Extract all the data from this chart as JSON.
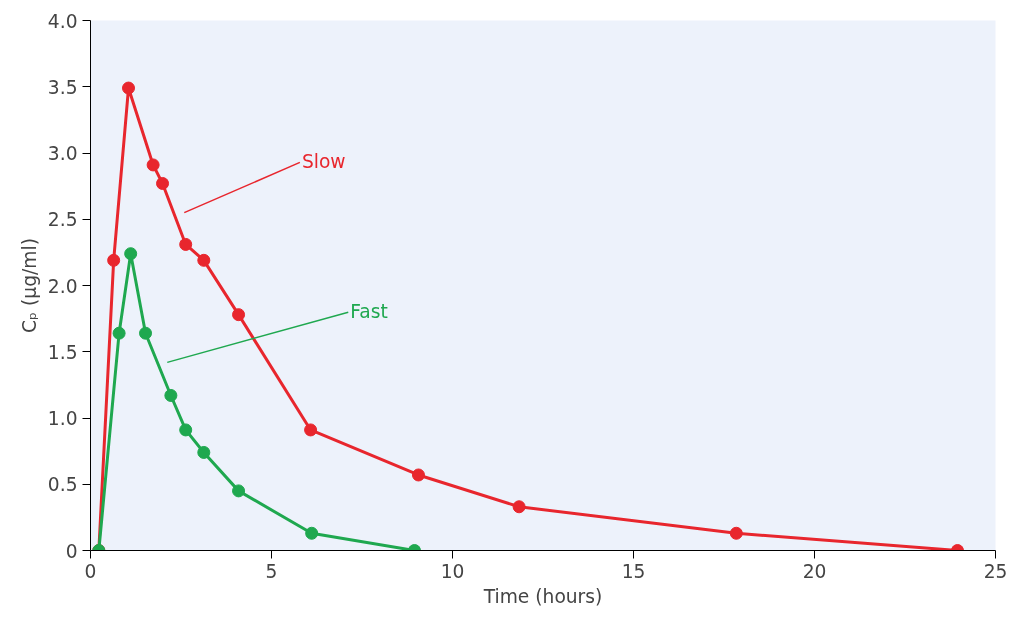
{
  "chart_data": {
    "type": "line",
    "xlabel": "Time (hours)",
    "ylabel": "Cₚ (μg/ml)",
    "xlim": [
      0,
      25
    ],
    "ylim": [
      0,
      4.0
    ],
    "xticks": [
      0,
      5,
      10,
      15,
      20,
      25
    ],
    "yticks": [
      0,
      {
        "value": 0.5,
        "label": "0.5"
      },
      {
        "value": 1,
        "label": "1.0"
      },
      {
        "value": 1.5,
        "label": "1.5"
      },
      {
        "value": 2,
        "label": "2.0"
      },
      {
        "value": 2.5,
        "label": "2.5"
      },
      {
        "value": 3,
        "label": "3.0"
      },
      {
        "value": 3.5,
        "label": "3.5"
      },
      {
        "value": 4,
        "label": "4.0"
      }
    ],
    "grid": false,
    "marker": "circle",
    "line_style": "solid",
    "series": [
      {
        "name": "Slow",
        "color": "#e8262d",
        "x": [
          0.23,
          0.64,
          1.05,
          1.73,
          1.99,
          2.63,
          3.13,
          4.09,
          6.08,
          9.06,
          11.84,
          17.84,
          23.95
        ],
        "values": [
          0,
          2.19,
          3.49,
          2.91,
          2.77,
          2.31,
          2.19,
          1.78,
          0.91,
          0.57,
          0.33,
          0.13,
          0
        ]
      },
      {
        "name": "Fast",
        "color": "#1fa84f",
        "x": [
          0.23,
          0.79,
          1.11,
          1.52,
          2.22,
          2.63,
          3.13,
          4.09,
          6.11,
          8.95
        ],
        "values": [
          0,
          1.64,
          2.24,
          1.64,
          1.17,
          0.91,
          0.74,
          0.45,
          0.13,
          0
        ]
      }
    ]
  }
}
